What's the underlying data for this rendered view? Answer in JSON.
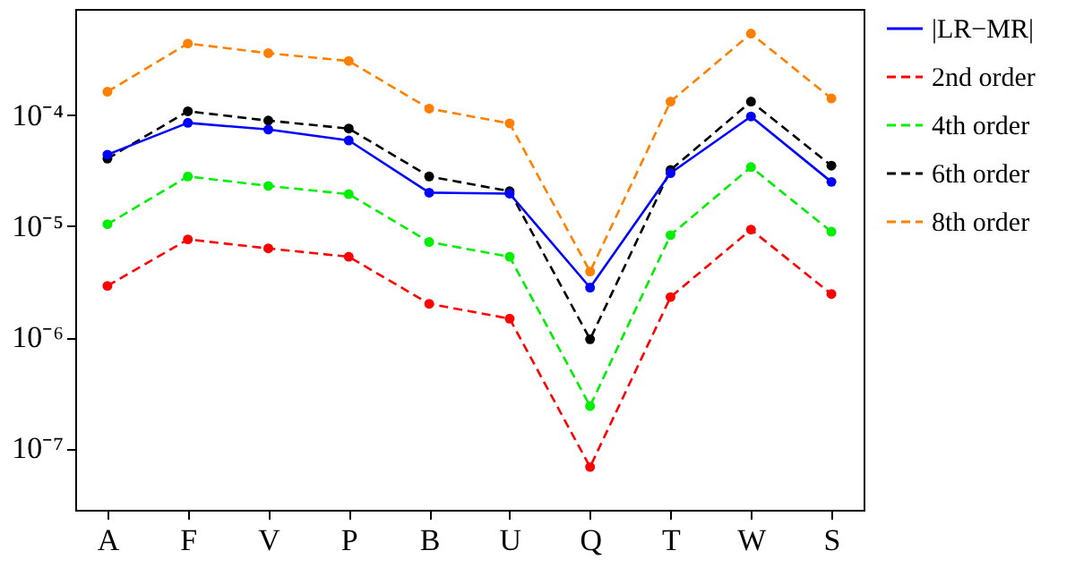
{
  "chart_data": {
    "type": "line",
    "log": "y",
    "categories": [
      "A",
      "F",
      "V",
      "P",
      "B",
      "U",
      "Q",
      "T",
      "W",
      "S"
    ],
    "ylim": [
      2.8e-08,
      0.0009
    ],
    "yticks": [
      {
        "value": 1e-07,
        "label": "10⁻⁷"
      },
      {
        "value": 1e-06,
        "label": "10⁻⁶"
      },
      {
        "value": 1e-05,
        "label": "10⁻⁵"
      },
      {
        "value": 0.0001,
        "label": "10⁻⁴"
      }
    ],
    "grid": false,
    "legend": "right",
    "marker": "circle",
    "series": [
      {
        "name": "|LR−MR|",
        "color": "#0000ff",
        "line_style": "solid",
        "values": [
          4.4e-05,
          8.5e-05,
          7.4e-05,
          5.9e-05,
          2e-05,
          1.96e-05,
          2.8e-06,
          3e-05,
          9.7e-05,
          2.5e-05
        ]
      },
      {
        "name": "2nd order",
        "color": "#ff0000",
        "line_style": "dashed",
        "values": [
          2.9e-06,
          7.6e-06,
          6.3e-06,
          5.3e-06,
          2e-06,
          1.47e-06,
          6.8e-08,
          2.3e-06,
          9.3e-06,
          2.45e-06
        ]
      },
      {
        "name": "4th order",
        "color": "#00ee00",
        "line_style": "dashed",
        "values": [
          1.04e-05,
          2.8e-05,
          2.3e-05,
          1.94e-05,
          7.2e-06,
          5.3e-06,
          2.4e-07,
          8.3e-06,
          3.4e-05,
          8.9e-06
        ]
      },
      {
        "name": "6th order",
        "color": "#000000",
        "line_style": "dashed",
        "values": [
          4.05e-05,
          0.000108,
          8.9e-05,
          7.55e-05,
          2.8e-05,
          2.06e-05,
          9.6e-07,
          3.2e-05,
          0.000132,
          3.5e-05
        ]
      },
      {
        "name": "8th order",
        "color": "#ff8000",
        "line_style": "dashed",
        "values": [
          0.000162,
          0.00044,
          0.00036,
          0.000306,
          0.000114,
          8.4e-05,
          3.9e-06,
          0.000132,
          0.00054,
          0.000141
        ]
      }
    ]
  }
}
